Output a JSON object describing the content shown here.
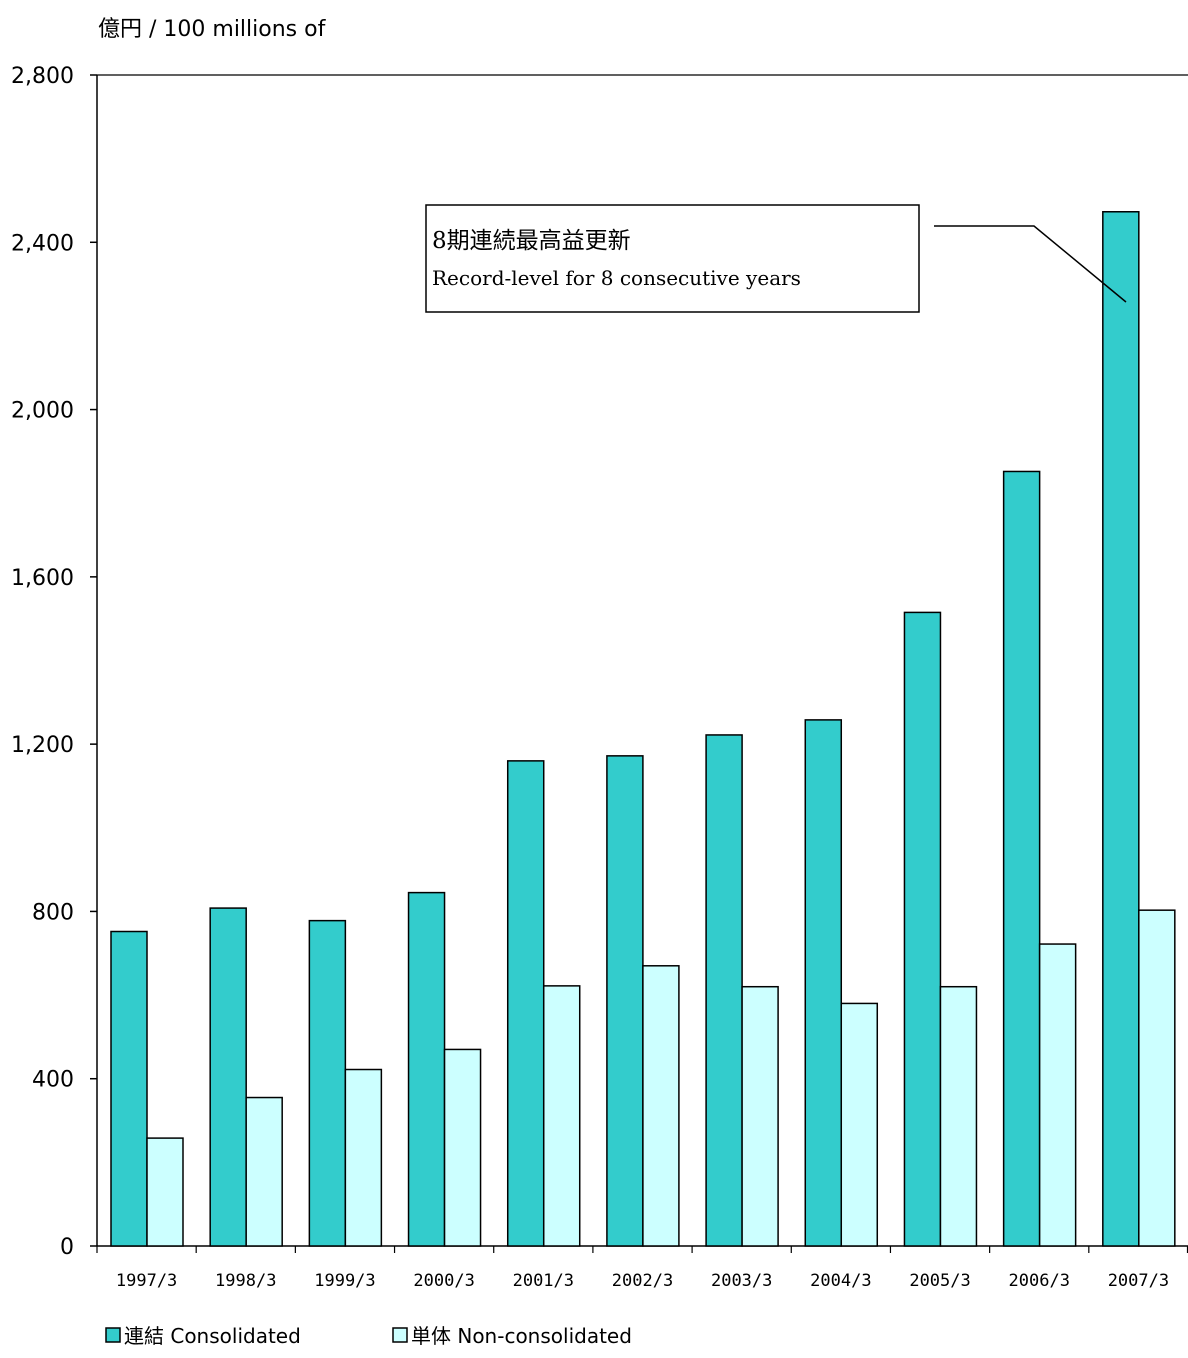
{
  "chart_data": {
    "type": "bar",
    "unit_label": "億円 / 100 millions of",
    "categories": [
      "1997/3",
      "1998/3",
      "1999/3",
      "2000/3",
      "2001/3",
      "2002/3",
      "2003/3",
      "2004/3",
      "2005/3",
      "2006/3",
      "2007/3"
    ],
    "series": [
      {
        "name": "連結 Consolidated",
        "color": "#33CCCC",
        "values": [
          752,
          808,
          778,
          845,
          1160,
          1172,
          1222,
          1258,
          1515,
          1852,
          2473
        ]
      },
      {
        "name": "単体 Non-consolidated",
        "color": "#CCFFFF",
        "values": [
          258,
          355,
          422,
          470,
          622,
          670,
          620,
          580,
          620,
          722,
          803
        ]
      }
    ],
    "ylim": [
      0,
      2800
    ],
    "yticks": [
      "0",
      "400",
      "800",
      "1,200",
      "1,600",
      "2,000",
      "2,400",
      "2,800"
    ],
    "ytick_values": [
      0,
      400,
      800,
      1200,
      1600,
      2000,
      2400,
      2800
    ],
    "annotation": {
      "line1": "8期連続最高益更新",
      "line2": "Record-level for 8 consecutive years",
      "points_to": "2007/3"
    },
    "legend": [
      {
        "label": "連結 Consolidated",
        "color": "#33CCCC"
      },
      {
        "label": "単体 Non-consolidated",
        "color": "#CCFFFF"
      }
    ],
    "legend_position": "bottom",
    "grid": false
  }
}
